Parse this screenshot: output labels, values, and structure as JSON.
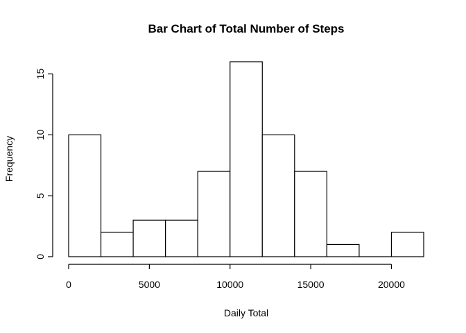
{
  "chart_data": {
    "type": "bar",
    "title": "Bar Chart of Total Number of Steps",
    "xlabel": "Daily Total",
    "ylabel": "Frequency",
    "bins": [
      {
        "start": 0,
        "end": 2000,
        "count": 10
      },
      {
        "start": 2000,
        "end": 4000,
        "count": 2
      },
      {
        "start": 4000,
        "end": 6000,
        "count": 3
      },
      {
        "start": 6000,
        "end": 8000,
        "count": 3
      },
      {
        "start": 8000,
        "end": 10000,
        "count": 7
      },
      {
        "start": 10000,
        "end": 12000,
        "count": 16
      },
      {
        "start": 12000,
        "end": 14000,
        "count": 10
      },
      {
        "start": 14000,
        "end": 16000,
        "count": 7
      },
      {
        "start": 16000,
        "end": 18000,
        "count": 1
      },
      {
        "start": 18000,
        "end": 20000,
        "count": 0
      },
      {
        "start": 20000,
        "end": 22000,
        "count": 2
      }
    ],
    "xlim": [
      0,
      22000
    ],
    "ylim": [
      0,
      16
    ],
    "x_ticks": [
      0,
      5000,
      10000,
      15000,
      20000
    ],
    "y_ticks": [
      0,
      5,
      10,
      15
    ],
    "grid": false,
    "bar_fill": "#ffffff",
    "bar_stroke": "#000000"
  }
}
